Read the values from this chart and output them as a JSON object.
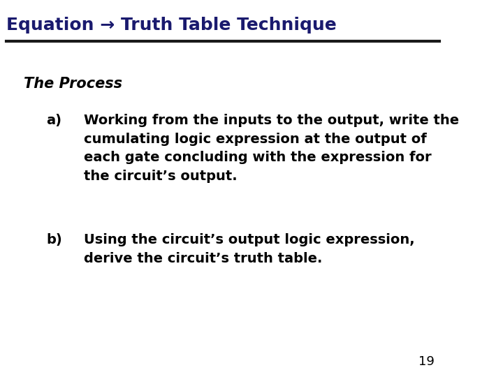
{
  "title": "Equation → Truth Table Technique",
  "title_color": "#1a1a6e",
  "title_fontsize": 18,
  "line_color": "#1a1a1a",
  "bg_color": "#ffffff",
  "section_label": "The Process",
  "section_label_fontsize": 15,
  "section_label_color": "#000000",
  "item_a_label": "a)",
  "item_a_text": "Working from the inputs to the output, write the\ncumulating logic expression at the output of\neach gate concluding with the expression for\nthe circuit’s output.",
  "item_b_label": "b)",
  "item_b_text": "Using the circuit’s output logic expression,\nderive the circuit’s truth table.",
  "item_fontsize": 14,
  "item_color": "#000000",
  "page_number": "19",
  "page_number_fontsize": 13,
  "page_number_color": "#000000"
}
